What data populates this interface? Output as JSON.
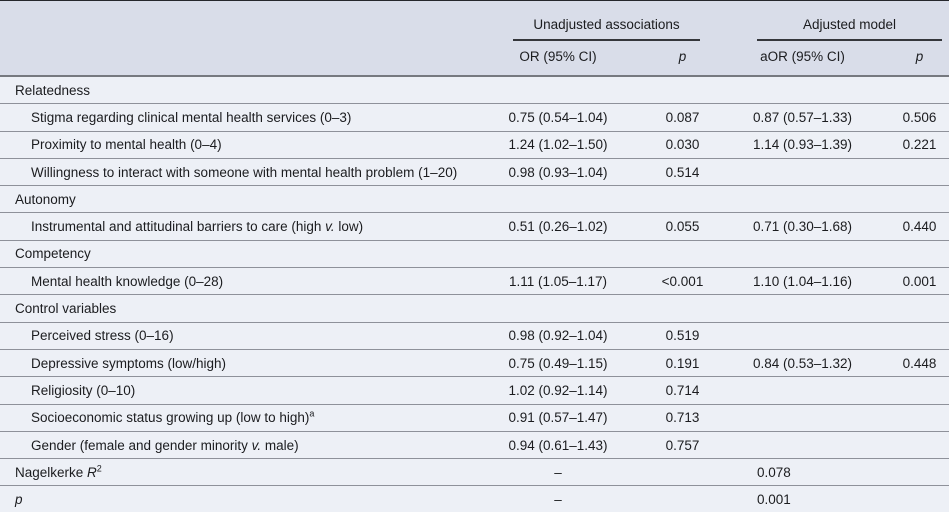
{
  "colors": {
    "header_band": "#d9dde9",
    "body_band": "#edf0f6",
    "text": "#1b1c1f",
    "hairline": "#8e919a",
    "bottom_bar": "#15171c"
  },
  "table": {
    "spanners": [
      {
        "label": "Unadjusted associations"
      },
      {
        "label": "Adjusted model"
      }
    ],
    "columns": [
      "OR (95% CI)",
      "p",
      "aOR (95% CI)",
      "p"
    ],
    "rows": [
      {
        "type": "section",
        "label": [
          {
            "text": "Relatedness",
            "style": "normal"
          }
        ],
        "or": "",
        "p1": "",
        "aor": "",
        "p2": ""
      },
      {
        "type": "item",
        "label": [
          {
            "text": "Stigma regarding clinical mental health services (0–3)",
            "style": "normal"
          }
        ],
        "or": "0.75 (0.54–1.04)",
        "p1": "0.087",
        "aor": "0.87 (0.57–1.33)",
        "p2": "0.506"
      },
      {
        "type": "item",
        "label": [
          {
            "text": "Proximity to mental health (0–4)",
            "style": "normal"
          }
        ],
        "or": "1.24 (1.02–1.50)",
        "p1": "0.030",
        "aor": "1.14 (0.93–1.39)",
        "p2": "0.221"
      },
      {
        "type": "item",
        "label": [
          {
            "text": "Willingness to interact with someone with mental health problem (1–20)",
            "style": "normal"
          }
        ],
        "or": "0.98 (0.93–1.04)",
        "p1": "0.514",
        "aor": "",
        "p2": ""
      },
      {
        "type": "section",
        "label": [
          {
            "text": "Autonomy",
            "style": "normal"
          }
        ],
        "or": "",
        "p1": "",
        "aor": "",
        "p2": ""
      },
      {
        "type": "item",
        "label": [
          {
            "text": "Instrumental and attitudinal barriers to care (high ",
            "style": "normal"
          },
          {
            "text": "v.",
            "style": "italic"
          },
          {
            "text": " low)",
            "style": "normal"
          }
        ],
        "or": "0.51 (0.26–1.02)",
        "p1": "0.055",
        "aor": "0.71 (0.30–1.68)",
        "p2": "0.440"
      },
      {
        "type": "section",
        "label": [
          {
            "text": "Competency",
            "style": "normal"
          }
        ],
        "or": "",
        "p1": "",
        "aor": "",
        "p2": ""
      },
      {
        "type": "item",
        "label": [
          {
            "text": "Mental health knowledge (0–28)",
            "style": "normal"
          }
        ],
        "or": "1.11 (1.05–1.17)",
        "p1": "<0.001",
        "aor": "1.10 (1.04–1.16)",
        "p2": "0.001"
      },
      {
        "type": "section",
        "label": [
          {
            "text": "Control variables",
            "style": "normal"
          }
        ],
        "or": "",
        "p1": "",
        "aor": "",
        "p2": ""
      },
      {
        "type": "item",
        "label": [
          {
            "text": "Perceived stress (0–16)",
            "style": "normal"
          }
        ],
        "or": "0.98 (0.92–1.04)",
        "p1": "0.519",
        "aor": "",
        "p2": ""
      },
      {
        "type": "item",
        "label": [
          {
            "text": "Depressive symptoms (low/high)",
            "style": "normal"
          }
        ],
        "or": "0.75 (0.49–1.15)",
        "p1": "0.191",
        "aor": "0.84 (0.53–1.32)",
        "p2": "0.448"
      },
      {
        "type": "item",
        "label": [
          {
            "text": "Religiosity (0–10)",
            "style": "normal"
          }
        ],
        "or": "1.02 (0.92–1.14)",
        "p1": "0.714",
        "aor": "",
        "p2": ""
      },
      {
        "type": "item",
        "label": [
          {
            "text": "Socioeconomic status growing up (low to high)",
            "style": "normal"
          },
          {
            "text": "a",
            "style": "sup"
          }
        ],
        "or": "0.91 (0.57–1.47)",
        "p1": "0.713",
        "aor": "",
        "p2": ""
      },
      {
        "type": "item",
        "label": [
          {
            "text": "Gender (female and gender minority ",
            "style": "normal"
          },
          {
            "text": "v.",
            "style": "italic"
          },
          {
            "text": " male)",
            "style": "normal"
          }
        ],
        "or": "0.94 (0.61–1.43)",
        "p1": "0.757",
        "aor": "",
        "p2": ""
      },
      {
        "type": "summary",
        "label": [
          {
            "text": "Nagelkerke ",
            "style": "normal"
          },
          {
            "text": "R",
            "style": "italic"
          },
          {
            "text": "2",
            "style": "sup"
          }
        ],
        "or": "–",
        "p1": "",
        "aor": "0.078",
        "p2": ""
      },
      {
        "type": "summary",
        "label": [
          {
            "text": "p",
            "style": "italic"
          }
        ],
        "or": "–",
        "p1": "",
        "aor": "0.001",
        "p2": ""
      }
    ]
  }
}
